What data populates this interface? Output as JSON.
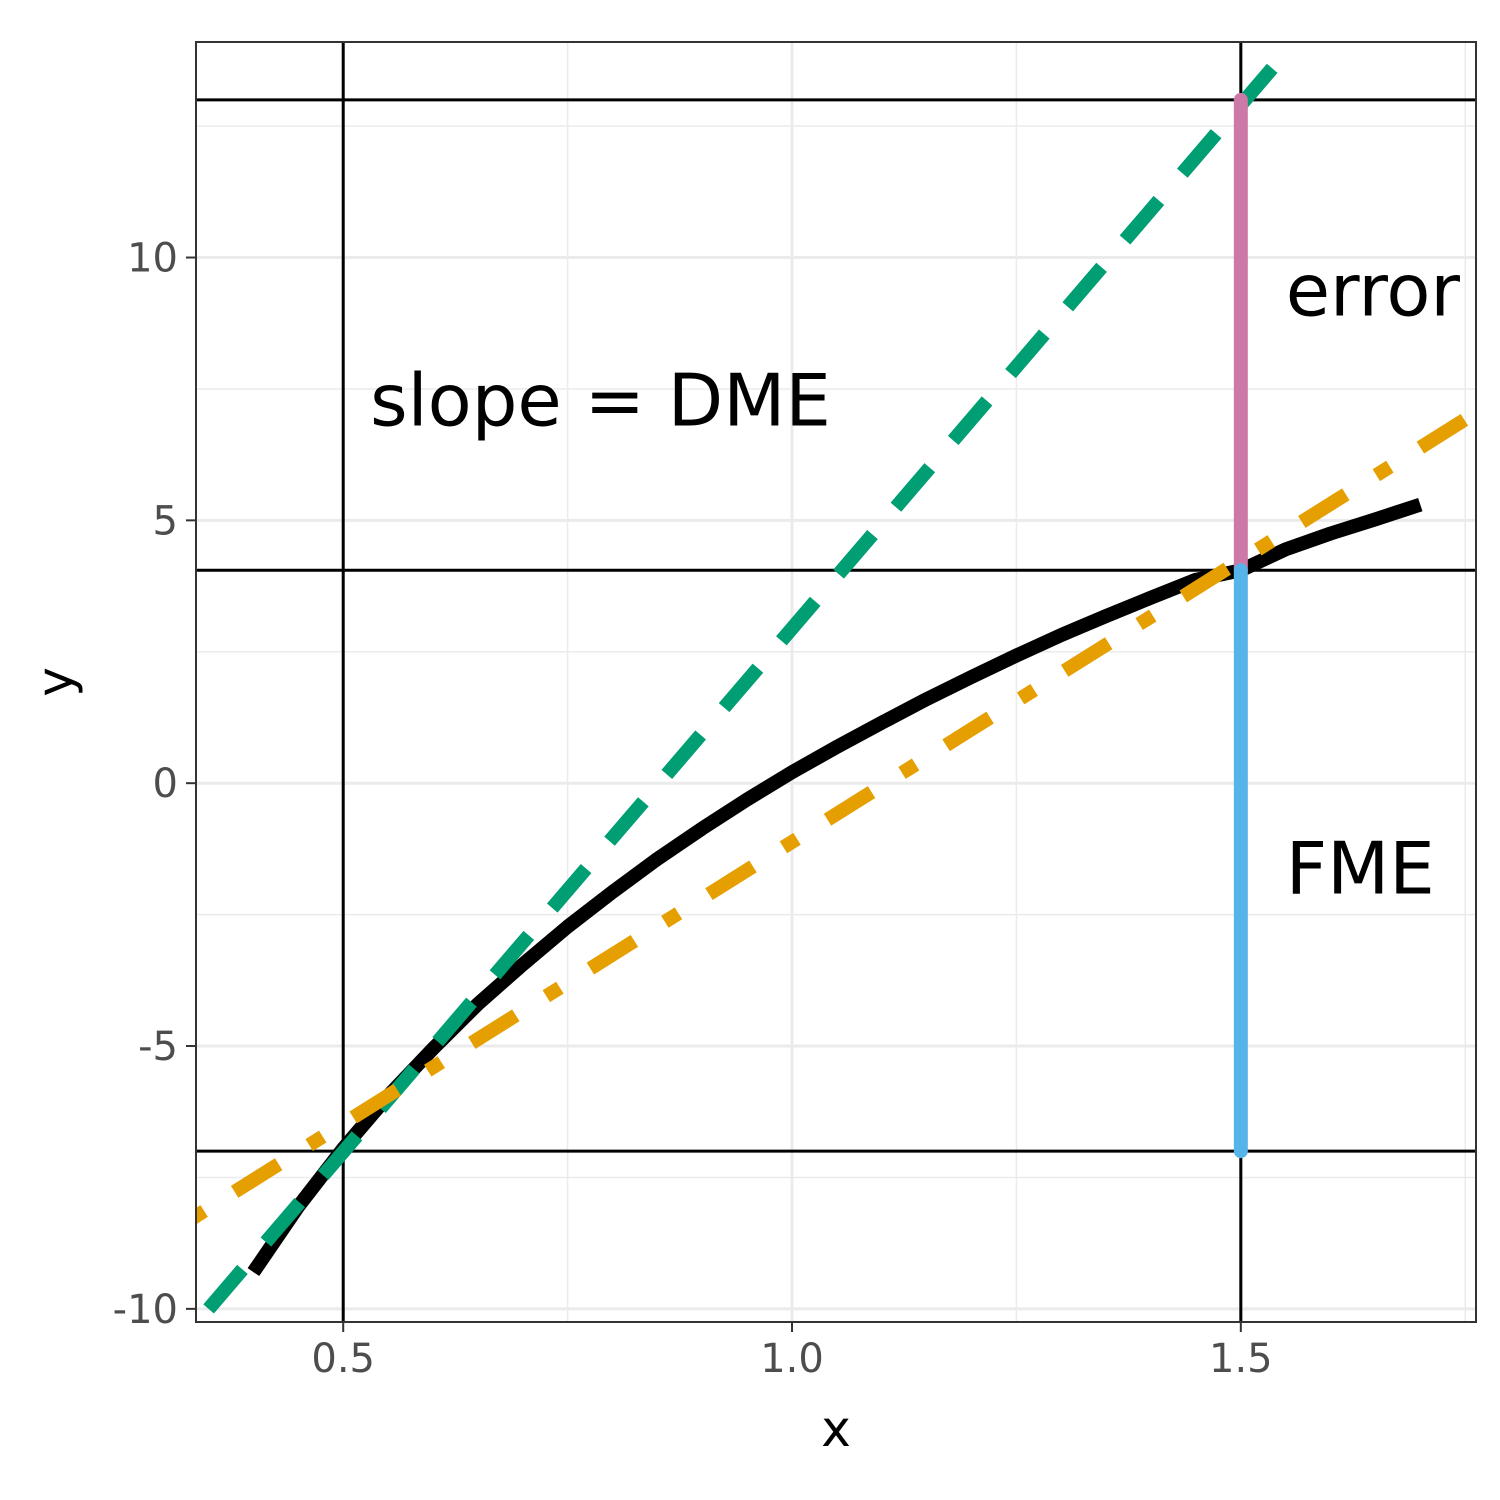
{
  "chart_data": {
    "type": "line",
    "xlabel": "x",
    "ylabel": "y",
    "xlim": [
      0.336,
      1.762
    ],
    "ylim": [
      -10.25,
      14.1
    ],
    "x_ticks": [
      {
        "value": 0.5,
        "label": "0.5"
      },
      {
        "value": 1.0,
        "label": "1.0"
      },
      {
        "value": 1.5,
        "label": "1.5"
      }
    ],
    "y_ticks": [
      {
        "value": -10,
        "label": "-10"
      },
      {
        "value": -5,
        "label": "-5"
      },
      {
        "value": 0,
        "label": "0"
      },
      {
        "value": 5,
        "label": "5"
      },
      {
        "value": 10,
        "label": "10"
      }
    ],
    "x_minor_gridlines": [
      0.75,
      1.25,
      1.75
    ],
    "y_minor_gridlines": [
      -7.5,
      -2.5,
      2.5,
      7.5,
      12.5
    ],
    "grid": true,
    "reference_lines": {
      "vertical_x": [
        0.5,
        1.5
      ],
      "horizontal_y": [
        -7.0,
        4.05,
        13.0
      ]
    },
    "series": [
      {
        "style": "solid",
        "color": "#000000",
        "x": [
          0.4,
          0.45,
          0.5,
          0.55,
          0.6,
          0.65,
          0.7,
          0.75,
          0.8,
          0.85,
          0.9,
          0.95,
          1.0,
          1.05,
          1.1,
          1.15,
          1.2,
          1.25,
          1.3,
          1.35,
          1.4,
          1.45,
          1.5,
          1.55,
          1.6,
          1.65,
          1.7
        ],
        "y": [
          -9.3,
          -8.05,
          -6.95,
          -5.95,
          -5.05,
          -4.2,
          -3.45,
          -2.73,
          -2.07,
          -1.44,
          -0.86,
          -0.31,
          0.21,
          0.69,
          1.15,
          1.6,
          2.02,
          2.43,
          2.82,
          3.18,
          3.53,
          3.87,
          4.05,
          4.45,
          4.75,
          5.02,
          5.3
        ]
      },
      {
        "style": "dashed",
        "color": "#009E73",
        "x": [
          0.35,
          1.535
        ],
        "y": [
          -10.0,
          13.6
        ]
      },
      {
        "style": "dotdash",
        "color": "#E69F00",
        "x": [
          0.33,
          1.762
        ],
        "y": [
          -8.3,
          7.05
        ]
      }
    ],
    "segments": [
      {
        "color": "#CC79A7",
        "x": 1.5,
        "y_from": 4.05,
        "y_to": 13.0
      },
      {
        "color": "#56B4E9",
        "x": 1.5,
        "y_from": -7.0,
        "y_to": 4.05
      }
    ],
    "annotations": [
      {
        "text": "slope = DME",
        "x": 0.53,
        "y": 6.8
      },
      {
        "text": "error",
        "x": 1.55,
        "y": 8.9
      },
      {
        "text": "FME",
        "x": 1.55,
        "y": -2.1
      }
    ]
  }
}
